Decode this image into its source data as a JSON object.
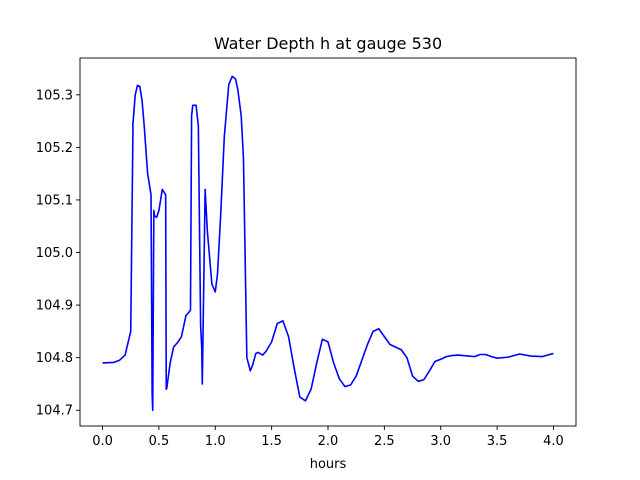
{
  "chart_data": {
    "type": "line",
    "title": "Water Depth h at gauge 530",
    "xlabel": "hours",
    "ylabel": "",
    "xlim": [
      -0.2,
      4.2
    ],
    "ylim": [
      104.67,
      105.37
    ],
    "xticks": [
      0.0,
      0.5,
      1.0,
      1.5,
      2.0,
      2.5,
      3.0,
      3.5,
      4.0
    ],
    "xtick_labels": [
      "0.0",
      "0.5",
      "1.0",
      "1.5",
      "2.0",
      "2.5",
      "3.0",
      "3.5",
      "4.0"
    ],
    "yticks": [
      104.7,
      104.8,
      104.9,
      105.0,
      105.1,
      105.2,
      105.3
    ],
    "ytick_labels": [
      "104.7",
      "104.8",
      "104.9",
      "105.0",
      "105.1",
      "105.2",
      "105.3"
    ],
    "grid": false,
    "series": [
      {
        "color": "#0000ff",
        "x": [
          0.0,
          0.1,
          0.15,
          0.2,
          0.25,
          0.27,
          0.268,
          0.29,
          0.31,
          0.33,
          0.35,
          0.37,
          0.4,
          0.43,
          0.44,
          0.445,
          0.455,
          0.46,
          0.48,
          0.5,
          0.53,
          0.56,
          0.565,
          0.57,
          0.6,
          0.63,
          0.67,
          0.7,
          0.74,
          0.78,
          0.79,
          0.8,
          0.83,
          0.85,
          0.87,
          0.88,
          0.885,
          0.91,
          0.92,
          0.93,
          0.95,
          0.97,
          1.0,
          1.02,
          1.05,
          1.08,
          1.12,
          1.15,
          1.18,
          1.2,
          1.23,
          1.25,
          1.28,
          1.305,
          1.31,
          1.33,
          1.36,
          1.38,
          1.42,
          1.45,
          1.5,
          1.55,
          1.6,
          1.65,
          1.7,
          1.75,
          1.8,
          1.85,
          1.9,
          1.95,
          2.0,
          2.05,
          2.1,
          2.15,
          2.2,
          2.25,
          2.3,
          2.35,
          2.4,
          2.45,
          2.5,
          2.55,
          2.6,
          2.65,
          2.7,
          2.75,
          2.8,
          2.85,
          2.9,
          2.95,
          3.0,
          3.05,
          3.1,
          3.15,
          3.2,
          3.25,
          3.3,
          3.35,
          3.4,
          3.45,
          3.5,
          3.6,
          3.7,
          3.8,
          3.9,
          4.0
        ],
        "y": [
          104.79,
          104.791,
          104.795,
          104.805,
          104.85,
          105.24,
          105.24,
          105.3,
          105.318,
          105.316,
          105.29,
          105.24,
          105.15,
          105.11,
          104.73,
          104.7,
          105.08,
          105.07,
          105.067,
          105.08,
          105.12,
          105.11,
          104.74,
          104.742,
          104.79,
          104.82,
          104.83,
          104.84,
          104.88,
          104.89,
          105.26,
          105.28,
          105.28,
          105.24,
          104.86,
          104.82,
          104.75,
          105.12,
          105.08,
          105.04,
          104.99,
          104.94,
          104.925,
          104.96,
          105.08,
          105.22,
          105.32,
          105.335,
          105.33,
          105.31,
          105.26,
          105.18,
          104.8,
          104.78,
          104.775,
          104.785,
          104.808,
          104.81,
          104.805,
          104.812,
          104.83,
          104.865,
          104.87,
          104.84,
          104.78,
          104.725,
          104.718,
          104.74,
          104.79,
          104.835,
          104.83,
          104.79,
          104.76,
          104.745,
          104.748,
          104.765,
          104.795,
          104.825,
          104.85,
          104.855,
          104.84,
          104.825,
          104.82,
          104.815,
          104.8,
          104.765,
          104.755,
          104.758,
          104.775,
          104.793,
          104.797,
          104.802,
          104.804,
          104.805,
          104.804,
          104.803,
          104.802,
          104.806,
          104.806,
          104.802,
          104.799,
          104.801,
          104.807,
          104.803,
          104.802,
          104.808
        ]
      }
    ]
  }
}
